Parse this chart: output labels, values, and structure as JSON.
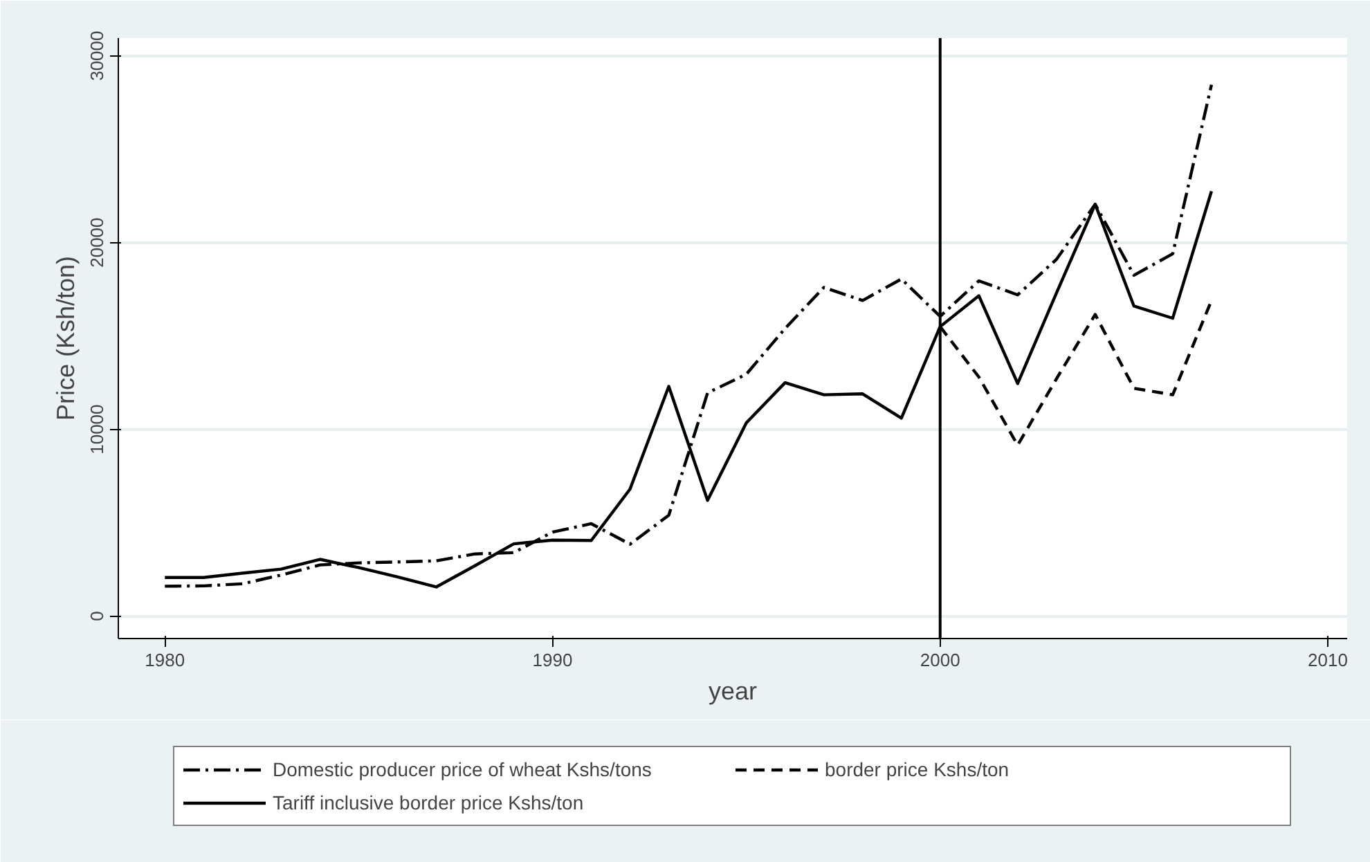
{
  "chart_data": {
    "type": "line",
    "xlabel": "year",
    "ylabel": "Price (Ksh/ton)",
    "x": [
      1980,
      1981,
      1982,
      1983,
      1984,
      1985,
      1986,
      1987,
      1988,
      1989,
      1990,
      1991,
      1992,
      1993,
      1994,
      1995,
      1996,
      1997,
      1998,
      1999,
      2000,
      2001,
      2002,
      2003,
      2004,
      2005,
      2006,
      2007
    ],
    "series": [
      {
        "name": "Domestic producer price of wheat Kshs/tons",
        "color": "#000000",
        "line_style": "dashdot",
        "values": [
          1600,
          1620,
          1730,
          2200,
          2740,
          2850,
          2900,
          2960,
          3330,
          3400,
          4500,
          4950,
          3850,
          5400,
          11950,
          12950,
          15400,
          17600,
          16900,
          18050,
          16050,
          17950,
          17200,
          19100,
          22050,
          18250,
          19400,
          28450
        ]
      },
      {
        "name": "border price Kshs/ton",
        "color": "#000000",
        "line_style": "dashed",
        "values": [
          null,
          null,
          null,
          null,
          null,
          null,
          null,
          null,
          null,
          null,
          null,
          null,
          null,
          null,
          null,
          null,
          null,
          null,
          null,
          null,
          15500,
          12800,
          9150,
          12700,
          16150,
          12200,
          11850,
          16900
        ]
      },
      {
        "name": "Tariff inclusive border price Kshs/ton",
        "color": "#000000",
        "line_style": "solid",
        "values": [
          2070,
          2070,
          2300,
          2520,
          3040,
          2600,
          2100,
          1560,
          2700,
          3870,
          4070,
          4050,
          6800,
          12300,
          6200,
          10350,
          12500,
          11850,
          11900,
          10600,
          15500,
          17150,
          12450,
          17300,
          22050,
          16600,
          15950,
          22750
        ]
      }
    ],
    "xlim": [
      1978.8,
      2010.5
    ],
    "ylim": [
      -1200,
      30950
    ],
    "xticks": [
      1980,
      1990,
      2000,
      2010
    ],
    "yticks": [
      0,
      10000,
      20000,
      30000
    ],
    "ref_lines": [
      {
        "axis": "x",
        "value": 2000,
        "color": "#000000"
      }
    ],
    "grid": "y",
    "legend": "bottom"
  }
}
